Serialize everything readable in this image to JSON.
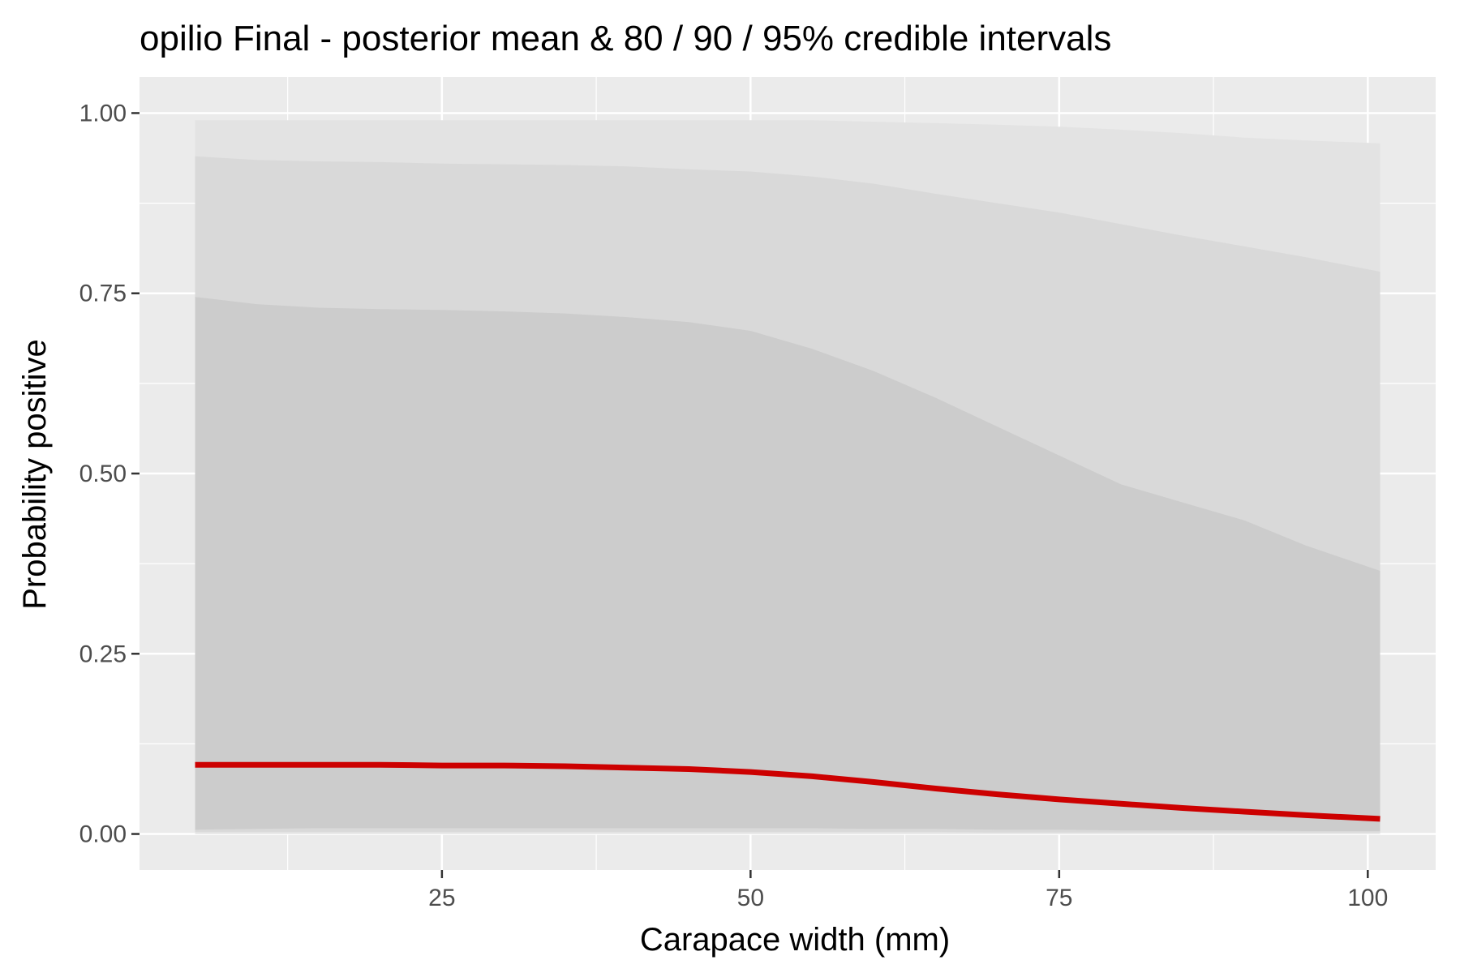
{
  "chart_data": {
    "type": "area",
    "title": "opilio Final - posterior mean & 80 / 90 / 95% credible intervals",
    "xlabel": "Carapace width (mm)",
    "ylabel": "Probability positive",
    "xlim": [
      0.5,
      105.5
    ],
    "ylim": [
      -0.05,
      1.05
    ],
    "x_ticks": [
      25,
      50,
      75,
      100
    ],
    "x_tick_labels": [
      "25",
      "50",
      "75",
      "100"
    ],
    "y_ticks": [
      0,
      0.25,
      0.5,
      0.75,
      1
    ],
    "y_tick_labels": [
      "0.00",
      "0.25",
      "0.50",
      "0.75",
      "1.00"
    ],
    "grid": true,
    "legend": "none",
    "colors": {
      "panel": "#ebebeb",
      "grid": "#ffffff",
      "band95": "#e3e3e3",
      "band90": "#d9d9d9",
      "band80": "#cccccc",
      "mean": "#cc0000"
    },
    "x": [
      5,
      10,
      15,
      20,
      25,
      30,
      35,
      40,
      45,
      50,
      55,
      60,
      65,
      70,
      75,
      80,
      85,
      90,
      95,
      101
    ],
    "series": [
      {
        "name": "95% lower",
        "values": [
          0.0,
          0.0,
          0.0,
          0.0,
          0.0,
          0.0,
          0.0,
          0.0,
          0.0,
          0.0,
          0.0,
          0.0,
          0.0,
          0.0,
          0.0,
          0.0,
          0.0,
          0.0,
          0.0,
          0.0
        ]
      },
      {
        "name": "95% upper",
        "values": [
          0.99,
          0.99,
          0.99,
          0.99,
          0.99,
          0.99,
          0.99,
          0.99,
          0.99,
          0.99,
          0.99,
          0.988,
          0.986,
          0.984,
          0.981,
          0.977,
          0.972,
          0.966,
          0.962,
          0.958
        ]
      },
      {
        "name": "90% lower",
        "values": [
          0.003,
          0.003,
          0.003,
          0.003,
          0.003,
          0.003,
          0.003,
          0.003,
          0.003,
          0.003,
          0.003,
          0.003,
          0.003,
          0.002,
          0.002,
          0.002,
          0.002,
          0.002,
          0.002,
          0.002
        ]
      },
      {
        "name": "90% upper",
        "values": [
          0.94,
          0.935,
          0.933,
          0.932,
          0.93,
          0.929,
          0.928,
          0.926,
          0.922,
          0.919,
          0.912,
          0.902,
          0.888,
          0.875,
          0.862,
          0.846,
          0.83,
          0.815,
          0.8,
          0.78
        ]
      },
      {
        "name": "80% lower",
        "values": [
          0.006,
          0.007,
          0.008,
          0.008,
          0.008,
          0.008,
          0.008,
          0.008,
          0.008,
          0.008,
          0.008,
          0.007,
          0.007,
          0.006,
          0.006,
          0.005,
          0.005,
          0.005,
          0.004,
          0.004
        ]
      },
      {
        "name": "80% upper",
        "values": [
          0.745,
          0.735,
          0.73,
          0.728,
          0.727,
          0.725,
          0.722,
          0.717,
          0.71,
          0.698,
          0.673,
          0.642,
          0.605,
          0.565,
          0.525,
          0.485,
          0.46,
          0.435,
          0.4,
          0.365
        ]
      },
      {
        "name": "posterior mean",
        "values": [
          0.096,
          0.096,
          0.096,
          0.096,
          0.095,
          0.095,
          0.094,
          0.092,
          0.09,
          0.086,
          0.08,
          0.072,
          0.063,
          0.055,
          0.048,
          0.042,
          0.036,
          0.031,
          0.026,
          0.021
        ]
      }
    ]
  }
}
